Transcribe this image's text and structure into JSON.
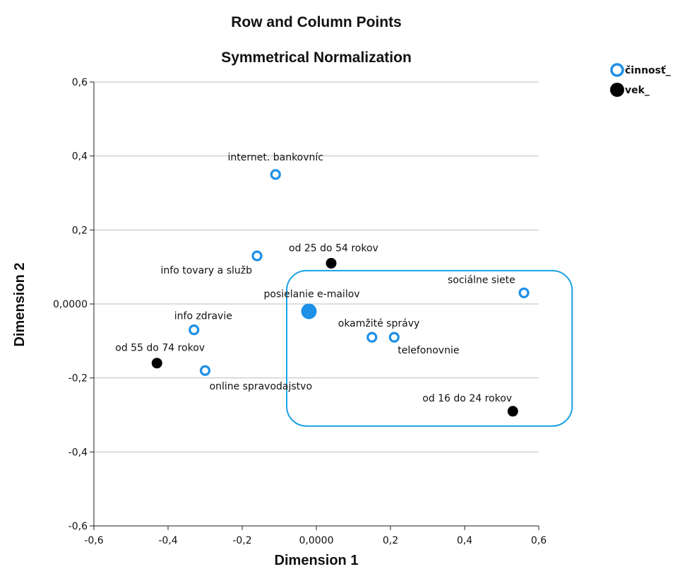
{
  "chart_data": {
    "type": "scatter",
    "title": "Row and Column Points",
    "subtitle": "Symmetrical Normalization",
    "xlabel": "Dimension 1",
    "ylabel": "Dimension 2",
    "xlim": [
      -0.6,
      0.6
    ],
    "ylim": [
      -0.6,
      0.6
    ],
    "x_ticks": [
      "-0,6",
      "-0,4",
      "-0,2",
      "0,0000",
      "0,2",
      "0,4",
      "0,6"
    ],
    "y_ticks": [
      "-0,6",
      "-0,4",
      "-0,2",
      "0,0000",
      "0,2",
      "0,4",
      "0,6"
    ],
    "grid": "horizontal",
    "legend_position": "top-right",
    "colors": {
      "cinnost": "#1e90e8",
      "vek": "#000000",
      "highlight": "#1ba1e2"
    },
    "series": [
      {
        "name": "činnosť_",
        "marker": "hollow-circle",
        "points": [
          {
            "label": "internet. bankovníc",
            "x": -0.11,
            "y": 0.35
          },
          {
            "label": "info tovary a služb",
            "x": -0.16,
            "y": 0.13
          },
          {
            "label": "posielanie e-mailov",
            "x": -0.02,
            "y": -0.02
          },
          {
            "label": "info zdravie",
            "x": -0.33,
            "y": -0.07
          },
          {
            "label": "online spravodajstvo",
            "x": -0.3,
            "y": -0.18
          },
          {
            "label": "okamžité správy",
            "x": 0.15,
            "y": -0.09
          },
          {
            "label": "telefonovnie",
            "x": 0.21,
            "y": -0.09
          },
          {
            "label": "sociálne siete",
            "x": 0.56,
            "y": 0.03
          }
        ]
      },
      {
        "name": "vek_",
        "marker": "filled-circle",
        "points": [
          {
            "label": "od 25 do 54 rokov",
            "x": 0.04,
            "y": 0.11
          },
          {
            "label": "od 55 do 74 rokov",
            "x": -0.43,
            "y": -0.16
          },
          {
            "label": "od 16 do 24 rokov",
            "x": 0.53,
            "y": -0.29
          }
        ]
      }
    ],
    "highlight_box": {
      "x_range": [
        -0.08,
        0.69
      ],
      "y_range": [
        -0.33,
        0.09
      ]
    }
  }
}
